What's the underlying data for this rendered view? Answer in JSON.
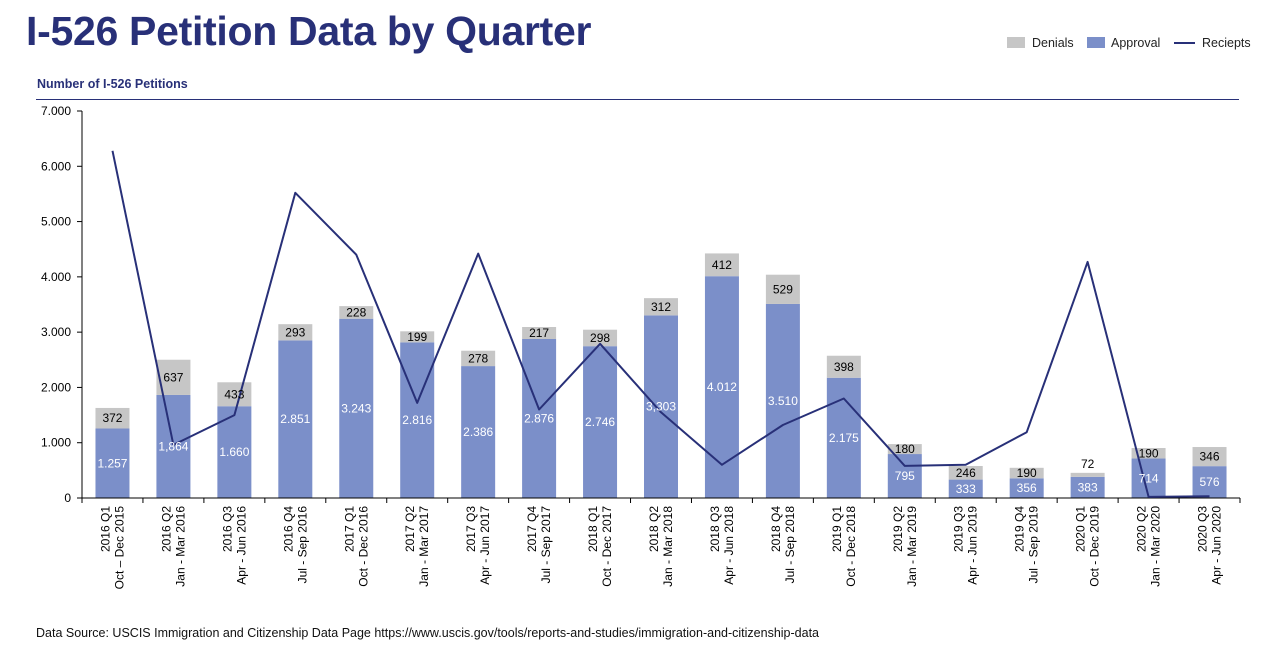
{
  "title": "I-526 Petition Data by Quarter",
  "subtitle": "Number of I-526 Petitions",
  "source": "Data Source: USCIS Immigration and Citizenship Data Page https://www.uscis.gov/tools/reports-and-studies/immigration-and-citizenship-data",
  "legend": {
    "denials": "Denials",
    "approval": "Approval",
    "receipts": "Reciepts"
  },
  "colors": {
    "denials": "#c6c6c6",
    "approval": "#7b8fc9",
    "receipts": "#283078",
    "title": "#283078"
  },
  "chart_data": {
    "type": "bar",
    "stacked": true,
    "title": "I-526 Petition Data by Quarter",
    "ylabel": "Number of I-526 Petitions",
    "ylim": [
      0,
      7000
    ],
    "yticks": [
      0,
      1000,
      2000,
      3000,
      4000,
      5000,
      6000,
      7000
    ],
    "ytick_labels": [
      "0",
      "1.000",
      "2.000",
      "3.000",
      "4.000",
      "5.000",
      "6.000",
      "7.000"
    ],
    "legend_position": "top-right",
    "grid": false,
    "categories": [
      {
        "q": "2016 Q1",
        "range": "Oct – Dec 2015"
      },
      {
        "q": "2016 Q2",
        "range": "Jan - Mar 2016"
      },
      {
        "q": "2016 Q3",
        "range": "Apr - Jun 2016"
      },
      {
        "q": "2016 Q4",
        "range": "Jul - Sep 2016"
      },
      {
        "q": "2017 Q1",
        "range": "Oct - Dec 2016"
      },
      {
        "q": "2017 Q2",
        "range": "Jan - Mar 2017"
      },
      {
        "q": "2017 Q3",
        "range": "Apr - Jun 2017"
      },
      {
        "q": "2017 Q4",
        "range": "Jul - Sep 2017"
      },
      {
        "q": "2018 Q1",
        "range": "Oct - Dec 2017"
      },
      {
        "q": "2018 Q2",
        "range": "Jan - Mar 2018"
      },
      {
        "q": "2018 Q3",
        "range": "Apr - Jun 2018"
      },
      {
        "q": "2018 Q4",
        "range": "Jul - Sep 2018"
      },
      {
        "q": "2019 Q1",
        "range": "Oct - Dec 2018"
      },
      {
        "q": "2019 Q2",
        "range": "Jan - Mar 2019"
      },
      {
        "q": "2019 Q3",
        "range": "Apr - Jun 2019"
      },
      {
        "q": "2019 Q4",
        "range": "Jul - Sep 2019"
      },
      {
        "q": "2020 Q1",
        "range": "Oct - Dec 2019"
      },
      {
        "q": "2020 Q2",
        "range": "Jan - Mar 2020"
      },
      {
        "q": "2020 Q3",
        "range": "Apr - Jun 2020"
      }
    ],
    "series": [
      {
        "name": "Approval",
        "kind": "bar",
        "values": [
          1257,
          1864,
          1660,
          2851,
          3243,
          2816,
          2386,
          2876,
          2746,
          3303,
          4012,
          3510,
          2175,
          795,
          333,
          356,
          383,
          714,
          576
        ],
        "labels": [
          "1.257",
          "1,864",
          "1.660",
          "2.851",
          "3.243",
          "2.816",
          "2.386",
          "2.876",
          "2.746",
          "3,303",
          "4.012",
          "3.510",
          "2.175",
          "795",
          "333",
          "356",
          "383",
          "714",
          "576"
        ]
      },
      {
        "name": "Denials",
        "kind": "bar",
        "values": [
          372,
          637,
          433,
          293,
          228,
          199,
          278,
          217,
          298,
          312,
          412,
          529,
          398,
          180,
          246,
          190,
          72,
          190,
          346
        ],
        "labels": [
          "372",
          "637",
          "433",
          "293",
          "228",
          "199",
          "278",
          "217",
          "298",
          "312",
          "412",
          "529",
          "398",
          "180",
          "246",
          "190",
          "72",
          "190",
          "346"
        ]
      },
      {
        "name": "Reciepts",
        "kind": "line",
        "values": [
          6280,
          960,
          1500,
          5520,
          4400,
          1720,
          4420,
          1600,
          2790,
          1550,
          600,
          1320,
          1800,
          580,
          600,
          1190,
          4270,
          20,
          30
        ]
      }
    ]
  }
}
